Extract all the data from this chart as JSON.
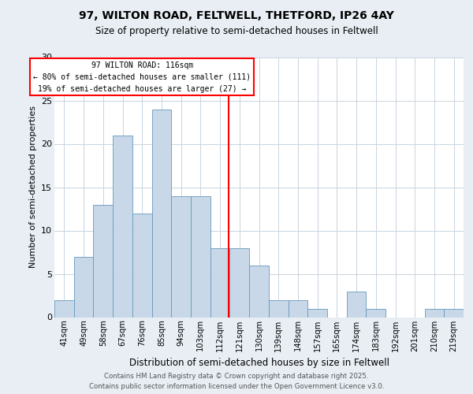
{
  "title1": "97, WILTON ROAD, FELTWELL, THETFORD, IP26 4AY",
  "title2": "Size of property relative to semi-detached houses in Feltwell",
  "xlabel": "Distribution of semi-detached houses by size in Feltwell",
  "ylabel": "Number of semi-detached properties",
  "categories": [
    "41sqm",
    "49sqm",
    "58sqm",
    "67sqm",
    "76sqm",
    "85sqm",
    "94sqm",
    "103sqm",
    "112sqm",
    "121sqm",
    "130sqm",
    "139sqm",
    "148sqm",
    "157sqm",
    "165sqm",
    "174sqm",
    "183sqm",
    "192sqm",
    "201sqm",
    "210sqm",
    "219sqm"
  ],
  "values": [
    2,
    7,
    13,
    21,
    12,
    24,
    14,
    14,
    8,
    8,
    6,
    2,
    2,
    1,
    0,
    3,
    1,
    0,
    0,
    1,
    1
  ],
  "bar_color": "#c8d8e8",
  "bar_edge_color": "#6699bb",
  "red_line_index": 8.44,
  "annotation_title": "97 WILTON ROAD: 116sqm",
  "annotation_line1": "← 80% of semi-detached houses are smaller (111)",
  "annotation_line2": "19% of semi-detached houses are larger (27) →",
  "ylim": [
    0,
    30
  ],
  "yticks": [
    0,
    5,
    10,
    15,
    20,
    25,
    30
  ],
  "footer": "Contains HM Land Registry data © Crown copyright and database right 2025.\nContains public sector information licensed under the Open Government Licence v3.0.",
  "background_color": "#e8eef4",
  "plot_background": "#ffffff",
  "grid_color": "#c8d4e0"
}
